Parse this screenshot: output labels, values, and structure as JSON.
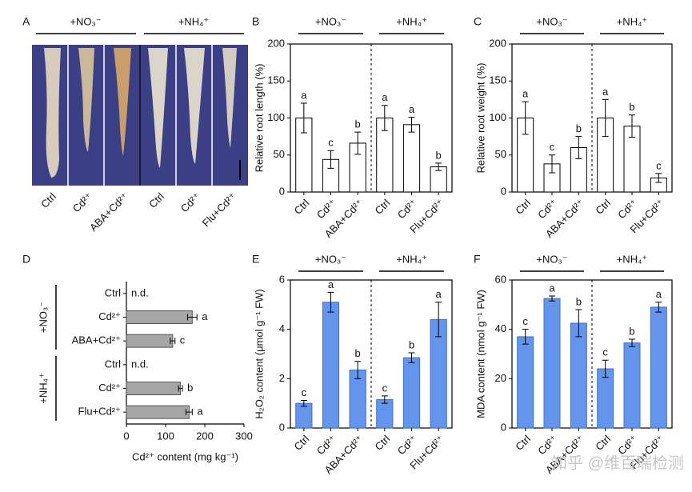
{
  "photo_panel": {
    "panel_label": "A",
    "groups": [
      {
        "label": "+NO₃⁻",
        "categories": [
          "Ctrl",
          "Cd²⁺",
          "ABA+Cd²⁺"
        ]
      },
      {
        "label": "+NH₄⁺",
        "categories": [
          "Ctrl",
          "Cd²⁺",
          "Flu+Cd²⁺"
        ]
      }
    ]
  },
  "chart_data": [
    {
      "type": "bar",
      "panel_label": "B",
      "y_label": "Relative root length (%)",
      "ylim": [
        0,
        200
      ],
      "yticks": [
        0,
        50,
        100,
        150,
        200
      ],
      "color": "#ffffff",
      "edge_color": "#000000",
      "groups": [
        {
          "label": "+NO₃⁻",
          "categories": [
            "Ctrl",
            "Cd²⁺",
            "ABA+Cd²⁺"
          ],
          "values": [
            100,
            44,
            66
          ],
          "errors": [
            20,
            12,
            15
          ],
          "letters": [
            "a",
            "c",
            "b"
          ]
        },
        {
          "label": "+NH₄⁺",
          "categories": [
            "Ctrl",
            "Cd²⁺",
            "Flu+Cd²⁺"
          ],
          "values": [
            100,
            91,
            34
          ],
          "errors": [
            17,
            10,
            5
          ],
          "letters": [
            "a",
            "a",
            "b"
          ]
        }
      ]
    },
    {
      "type": "bar",
      "panel_label": "C",
      "y_label": "Relative root weight (%)",
      "ylim": [
        0,
        200
      ],
      "yticks": [
        0,
        50,
        100,
        150,
        200
      ],
      "color": "#ffffff",
      "edge_color": "#000000",
      "groups": [
        {
          "label": "+NO₃⁻",
          "categories": [
            "Ctrl",
            "Cd²⁺",
            "ABA+Cd²⁺"
          ],
          "values": [
            100,
            38,
            60
          ],
          "errors": [
            22,
            12,
            15
          ],
          "letters": [
            "a",
            "c",
            "b"
          ]
        },
        {
          "label": "+NH₄⁺",
          "categories": [
            "Ctrl",
            "Cd²⁺",
            "Flu+Cd²⁺"
          ],
          "values": [
            100,
            89,
            19
          ],
          "errors": [
            25,
            15,
            6
          ],
          "letters": [
            "a",
            "b",
            "c"
          ]
        }
      ]
    },
    {
      "type": "barh",
      "panel_label": "D",
      "x_label": "Cd²⁺ content (mg kg⁻¹)",
      "xlim": [
        0,
        300
      ],
      "xticks": [
        0,
        100,
        200,
        300
      ],
      "color": "#a6a6a6",
      "edge_color": "#555555",
      "groups": [
        {
          "label": "+NO₃⁻",
          "categories": [
            "Ctrl",
            "Cd²⁺",
            "ABA+Cd²⁺"
          ],
          "values": [
            null,
            168,
            118
          ],
          "errors": [
            null,
            12,
            6
          ],
          "labels": [
            "n.d.",
            "a",
            "c"
          ]
        },
        {
          "label": "+NH₄⁺",
          "categories": [
            "Ctrl",
            "Cd²⁺",
            "Flu+Cd²⁺"
          ],
          "values": [
            null,
            138,
            160
          ],
          "errors": [
            null,
            5,
            8
          ],
          "labels": [
            "n.d.",
            "b",
            "a"
          ]
        }
      ]
    },
    {
      "type": "bar",
      "panel_label": "E",
      "y_label": "H₂O₂ content (μmol g⁻¹ FW)",
      "ylim": [
        0,
        6
      ],
      "yticks": [
        0,
        2,
        4,
        6
      ],
      "color": "#6495ed",
      "edge_color": "#3d6fd1",
      "groups": [
        {
          "label": "+NO₃⁻",
          "categories": [
            "Ctrl",
            "Cd²⁺",
            "ABA+Cd²⁺"
          ],
          "values": [
            1.0,
            5.1,
            2.35
          ],
          "errors": [
            0.12,
            0.4,
            0.35
          ],
          "letters": [
            "c",
            "a",
            "b"
          ]
        },
        {
          "label": "+NH₄⁺",
          "categories": [
            "Ctrl",
            "Cd²⁺",
            "Flu+Cd²⁺"
          ],
          "values": [
            1.15,
            2.85,
            4.4
          ],
          "errors": [
            0.15,
            0.2,
            0.7
          ],
          "letters": [
            "c",
            "b",
            "a"
          ]
        }
      ]
    },
    {
      "type": "bar",
      "panel_label": "F",
      "y_label": "MDA content (nmol g⁻¹ FW)",
      "ylim": [
        0,
        60
      ],
      "yticks": [
        0,
        20,
        40,
        60
      ],
      "color": "#6495ed",
      "edge_color": "#3d6fd1",
      "groups": [
        {
          "label": "+NO₃⁻",
          "categories": [
            "Ctrl",
            "Cd²⁺",
            "ABA+Cd²⁺"
          ],
          "values": [
            37,
            52.5,
            42.5
          ],
          "errors": [
            3,
            1,
            5.5
          ],
          "letters": [
            "c",
            "a",
            "b"
          ]
        },
        {
          "label": "+NH₄⁺",
          "categories": [
            "Ctrl",
            "Cd²⁺",
            "Flu+Cd²⁺"
          ],
          "values": [
            24,
            34.5,
            49
          ],
          "errors": [
            3.5,
            1.5,
            2
          ],
          "letters": [
            "c",
            "b",
            "a"
          ]
        }
      ]
    }
  ],
  "watermark": "知乎 @维百瑞检测"
}
